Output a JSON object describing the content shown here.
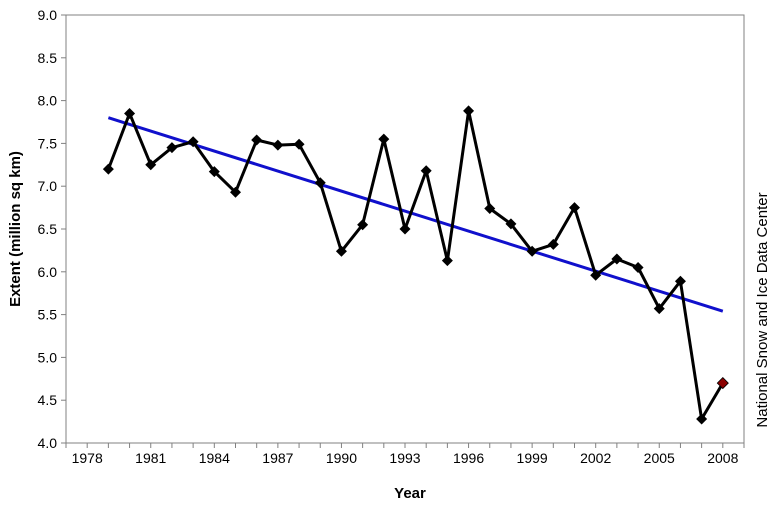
{
  "chart_data": {
    "type": "line",
    "xlabel": "Year",
    "ylabel": "Extent (million sq km)",
    "credit": "National Snow and Ice Data Center",
    "xlim": [
      1977,
      2009
    ],
    "ylim": [
      4.0,
      9.0
    ],
    "x_ticks": [
      "1978",
      "1981",
      "1984",
      "1987",
      "1990",
      "1993",
      "1996",
      "1999",
      "2002",
      "2005",
      "2008"
    ],
    "y_ticks": [
      "4.0",
      "4.5",
      "5.0",
      "5.5",
      "6.0",
      "6.5",
      "7.0",
      "7.5",
      "8.0",
      "8.5",
      "9.0"
    ],
    "grid": false,
    "series": [
      {
        "color": "#000000",
        "marker": "diamond",
        "x": [
          1979,
          1980,
          1981,
          1982,
          1983,
          1984,
          1985,
          1986,
          1987,
          1988,
          1989,
          1990,
          1991,
          1992,
          1993,
          1994,
          1995,
          1996,
          1997,
          1998,
          1999,
          2000,
          2001,
          2002,
          2003,
          2004,
          2005,
          2006,
          2007,
          2008
        ],
        "y": [
          7.2,
          7.85,
          7.25,
          7.45,
          7.52,
          7.17,
          6.93,
          7.54,
          7.48,
          7.49,
          7.04,
          6.24,
          6.55,
          7.55,
          6.5,
          7.18,
          6.13,
          7.88,
          6.74,
          6.56,
          6.24,
          6.32,
          6.75,
          5.96,
          6.15,
          6.05,
          5.57,
          5.89,
          4.28,
          4.7
        ]
      }
    ],
    "highlight_point": {
      "x": 2008,
      "y": 4.7,
      "color": "#8b0000"
    },
    "trend_line": {
      "color": "#1010cc",
      "x": [
        1979,
        2008
      ],
      "y": [
        7.8,
        5.54
      ]
    }
  }
}
